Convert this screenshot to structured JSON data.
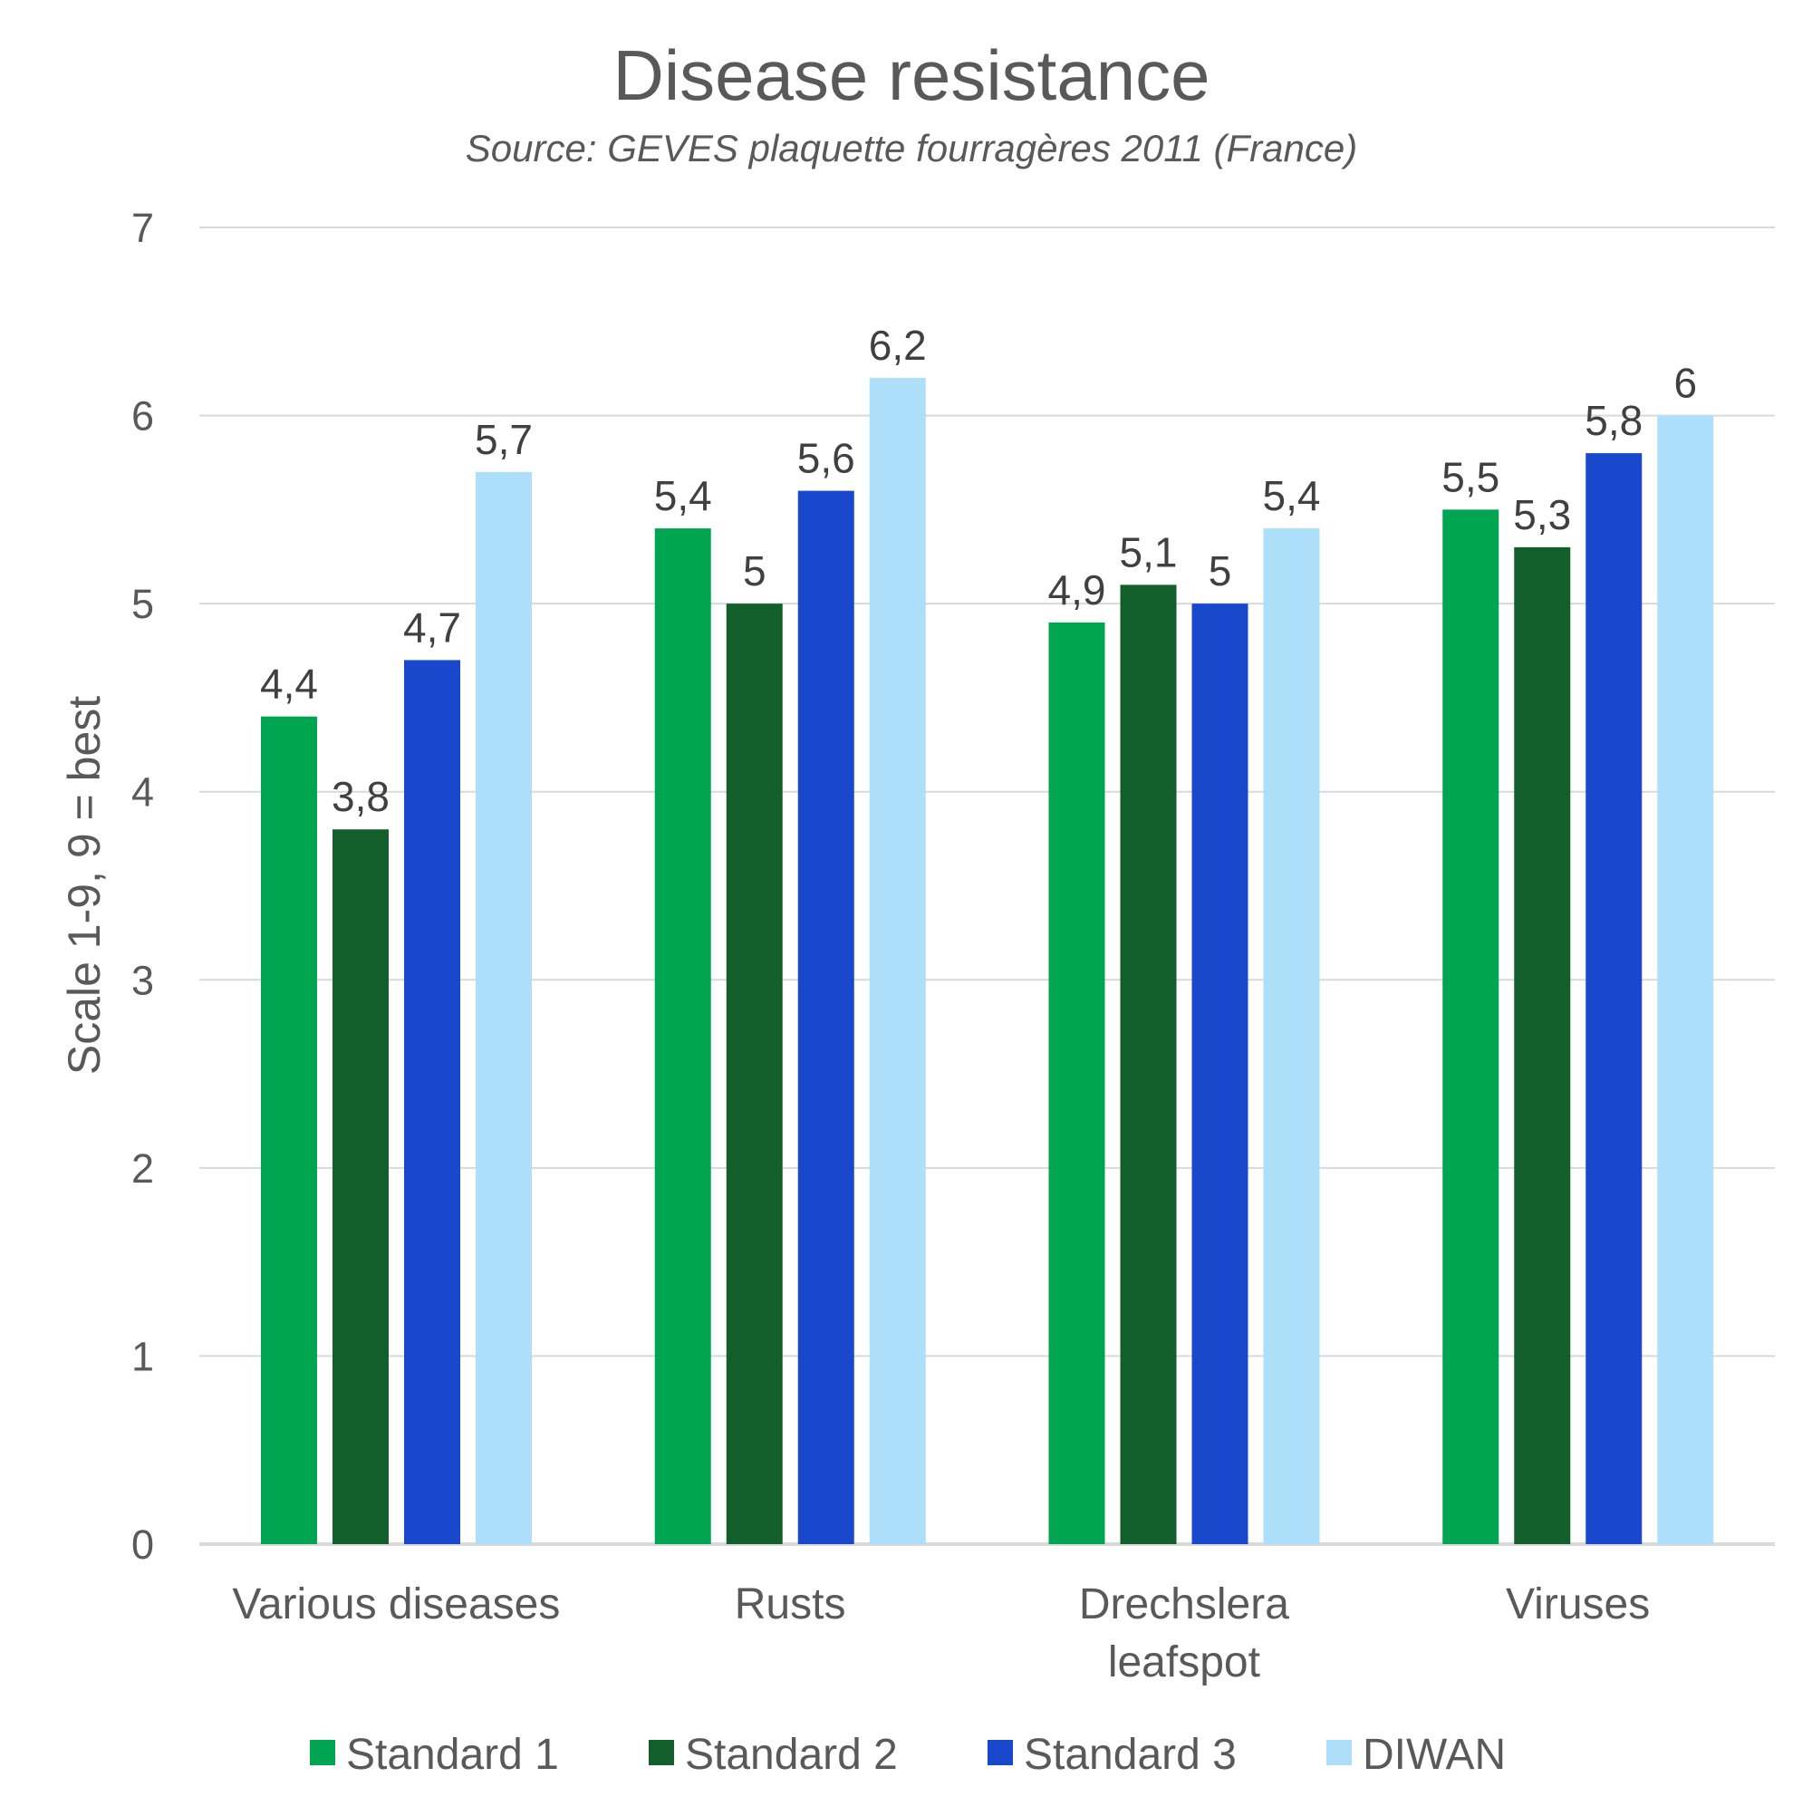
{
  "chart_data": {
    "type": "bar",
    "title": "Disease resistance",
    "subtitle": "Source: GEVES plaquette fourragères 2011 (France)",
    "xlabel": "",
    "ylabel": "Scale 1-9, 9 = best",
    "ylim": [
      0,
      7
    ],
    "yticks": [
      "0",
      "1",
      "2",
      "3",
      "4",
      "5",
      "6",
      "7"
    ],
    "grid": true,
    "legend_position": "bottom",
    "categories": [
      [
        "Various diseases"
      ],
      [
        "Rusts"
      ],
      [
        "Drechslera",
        "leafspot"
      ],
      [
        "Viruses"
      ]
    ],
    "series": [
      {
        "name": "Standard 1",
        "color": "#00A551",
        "values": [
          4.4,
          5.4,
          4.9,
          5.5
        ],
        "labels": [
          "4,4",
          "5,4",
          "4,9",
          "5,5"
        ]
      },
      {
        "name": "Standard 2",
        "color": "#135F2C",
        "values": [
          3.8,
          5.0,
          5.1,
          5.3
        ],
        "labels": [
          "3,8",
          "5",
          "5,1",
          "5,3"
        ]
      },
      {
        "name": "Standard 3",
        "color": "#1A48CC",
        "values": [
          4.7,
          5.6,
          5.0,
          5.8
        ],
        "labels": [
          "4,7",
          "5,6",
          "5",
          "5,8"
        ]
      },
      {
        "name": "DIWAN",
        "color": "#ADDFFA",
        "values": [
          5.7,
          6.2,
          5.4,
          6.0
        ],
        "labels": [
          "5,7",
          "6,2",
          "5,4",
          "6"
        ]
      }
    ]
  }
}
